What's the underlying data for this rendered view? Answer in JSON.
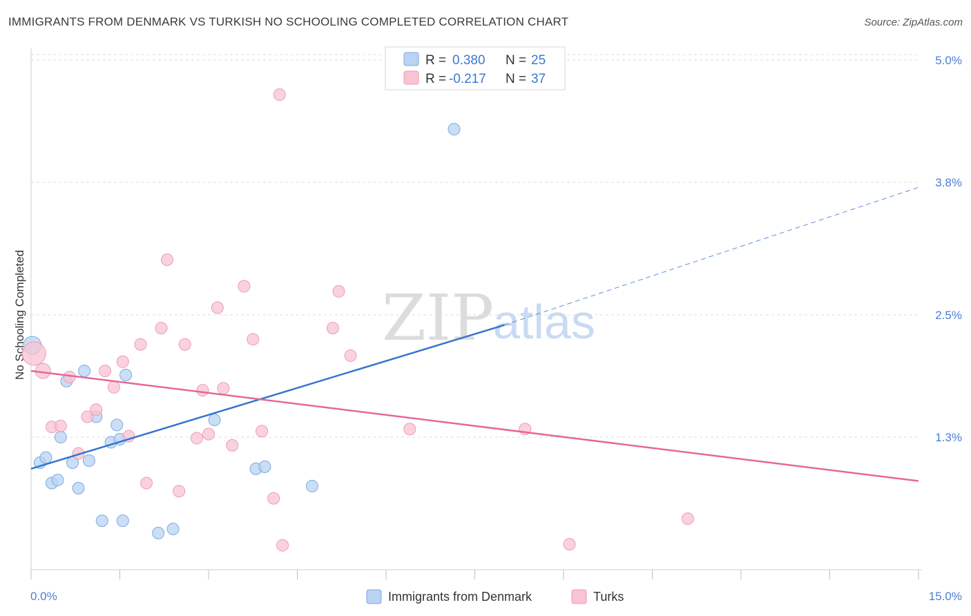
{
  "header": {
    "title": "IMMIGRANTS FROM DENMARK VS TURKISH NO SCHOOLING COMPLETED CORRELATION CHART",
    "source": "Source: ZipAtlas.com"
  },
  "watermark": {
    "zip": "ZIP",
    "atlas": "atlas"
  },
  "colors": {
    "blue_fill": "#b8d3f3",
    "blue_stroke": "#7ea9e3",
    "blue_line": "#3474d0",
    "pink_fill": "#f8c3d3",
    "pink_stroke": "#ee9ab3",
    "pink_line": "#e5679a",
    "tick_label": "#4a7fd0",
    "grid": "#dcdcdc"
  },
  "legend": {
    "rows": [
      {
        "r_label": "R =",
        "r_value": "0.380",
        "n_label": "N =",
        "n_value": "25",
        "color": "#b8d3f3"
      },
      {
        "r_label": "R =",
        "r_value": "-0.217",
        "n_label": "N =",
        "n_value": "37",
        "color": "#f8c3d3"
      }
    ]
  },
  "bottom_legend": [
    {
      "label": "Immigrants from Denmark",
      "color": "#b8d3f3"
    },
    {
      "label": "Turks",
      "color": "#f8c3d3"
    }
  ],
  "chart_data": {
    "type": "scatter",
    "title": "IMMIGRANTS FROM DENMARK VS TURKISH NO SCHOOLING COMPLETED CORRELATION CHART",
    "xlabel": "",
    "ylabel": "No Schooling Completed",
    "xlim": [
      0,
      15
    ],
    "ylim": [
      0,
      5.1
    ],
    "x_tick_labels": [
      "0.0%",
      "15.0%"
    ],
    "y_ticks": [
      1.3,
      2.5,
      3.8,
      5.0
    ],
    "y_tick_labels": [
      "1.3%",
      "2.5%",
      "3.8%",
      "5.0%"
    ],
    "grid": "horizontal dashed",
    "legend_position": "top-center",
    "series": [
      {
        "name": "Immigrants from Denmark",
        "color": "#b8d3f3",
        "points": [
          [
            0.02,
            2.2
          ],
          [
            0.15,
            1.05
          ],
          [
            0.25,
            1.1
          ],
          [
            0.35,
            0.85
          ],
          [
            0.45,
            0.88
          ],
          [
            0.6,
            1.85
          ],
          [
            0.7,
            1.05
          ],
          [
            0.8,
            0.8
          ],
          [
            0.9,
            1.95
          ],
          [
            0.98,
            1.07
          ],
          [
            1.1,
            1.5
          ],
          [
            1.2,
            0.48
          ],
          [
            1.35,
            1.25
          ],
          [
            1.45,
            1.42
          ],
          [
            1.55,
            0.48
          ],
          [
            1.6,
            1.91
          ],
          [
            2.15,
            0.36
          ],
          [
            2.4,
            0.4
          ],
          [
            3.1,
            1.47
          ],
          [
            3.8,
            0.99
          ],
          [
            3.95,
            1.01
          ],
          [
            4.75,
            0.82
          ],
          [
            7.15,
            4.32
          ],
          [
            0.5,
            1.3
          ],
          [
            1.5,
            1.28
          ]
        ],
        "trend": {
          "x": [
            0,
            8.0
          ],
          "y": [
            0.99,
            2.4
          ]
        },
        "trend_extension": {
          "x": [
            8.0,
            15.0
          ],
          "y": [
            2.4,
            3.75
          ]
        }
      },
      {
        "name": "Turks",
        "color": "#f8c3d3",
        "points": [
          [
            0.05,
            2.12
          ],
          [
            0.2,
            1.95
          ],
          [
            0.35,
            1.4
          ],
          [
            0.5,
            1.41
          ],
          [
            0.65,
            1.89
          ],
          [
            0.8,
            1.14
          ],
          [
            0.95,
            1.5
          ],
          [
            1.1,
            1.57
          ],
          [
            1.25,
            1.95
          ],
          [
            1.4,
            1.79
          ],
          [
            1.55,
            2.04
          ],
          [
            1.65,
            1.31
          ],
          [
            1.85,
            2.21
          ],
          [
            1.95,
            0.85
          ],
          [
            2.2,
            2.37
          ],
          [
            2.3,
            3.04
          ],
          [
            2.5,
            0.77
          ],
          [
            2.6,
            2.21
          ],
          [
            2.8,
            1.29
          ],
          [
            2.9,
            1.76
          ],
          [
            3.0,
            1.33
          ],
          [
            3.15,
            2.57
          ],
          [
            3.25,
            1.78
          ],
          [
            3.4,
            1.22
          ],
          [
            3.6,
            2.78
          ],
          [
            3.75,
            2.26
          ],
          [
            3.9,
            1.36
          ],
          [
            4.1,
            0.7
          ],
          [
            4.2,
            4.66
          ],
          [
            4.25,
            0.24
          ],
          [
            5.1,
            2.37
          ],
          [
            5.2,
            2.73
          ],
          [
            5.4,
            2.1
          ],
          [
            6.4,
            1.38
          ],
          [
            8.35,
            1.38
          ],
          [
            9.1,
            0.25
          ],
          [
            11.1,
            0.5
          ]
        ],
        "trend": {
          "x": [
            0,
            15.0
          ],
          "y": [
            1.95,
            0.87
          ]
        }
      }
    ]
  }
}
